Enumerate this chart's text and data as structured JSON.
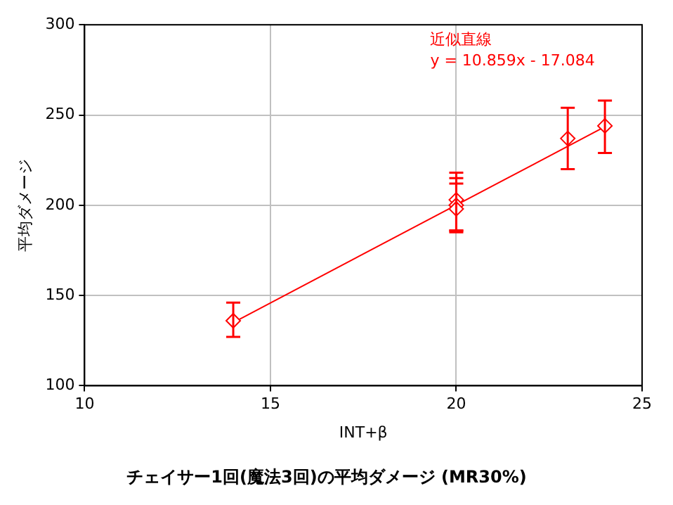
{
  "chart_data": {
    "type": "scatter",
    "title": "チェイサー1回(魔法3回)の平均ダメージ (MR30%)",
    "xlabel": "INT+β",
    "ylabel": "平均ダメージ",
    "xlim": [
      10,
      25
    ],
    "xticks": [
      10,
      15,
      20,
      25
    ],
    "ylim": [
      100,
      300
    ],
    "yticks": [
      100,
      150,
      200,
      250,
      300
    ],
    "grid": true,
    "legend": false,
    "annotations": [
      "近似直線",
      "y = 10.859x - 17.084"
    ],
    "series": [
      {
        "type": "scatter",
        "color": "#ff0000",
        "marker": "diamond",
        "x": [
          14,
          20,
          20,
          20,
          23,
          24
        ],
        "values": [
          136,
          203,
          200,
          198,
          237,
          244
        ],
        "errors": [
          [
            127,
            146
          ],
          [
            185,
            218
          ],
          [
            186,
            215
          ],
          [
            186,
            212
          ],
          [
            220,
            254
          ],
          [
            229,
            258
          ]
        ]
      },
      {
        "type": "line",
        "color": "#ff0000",
        "marker": "none",
        "x": [
          14,
          24
        ],
        "values": [
          135.0,
          243.5
        ]
      }
    ]
  }
}
